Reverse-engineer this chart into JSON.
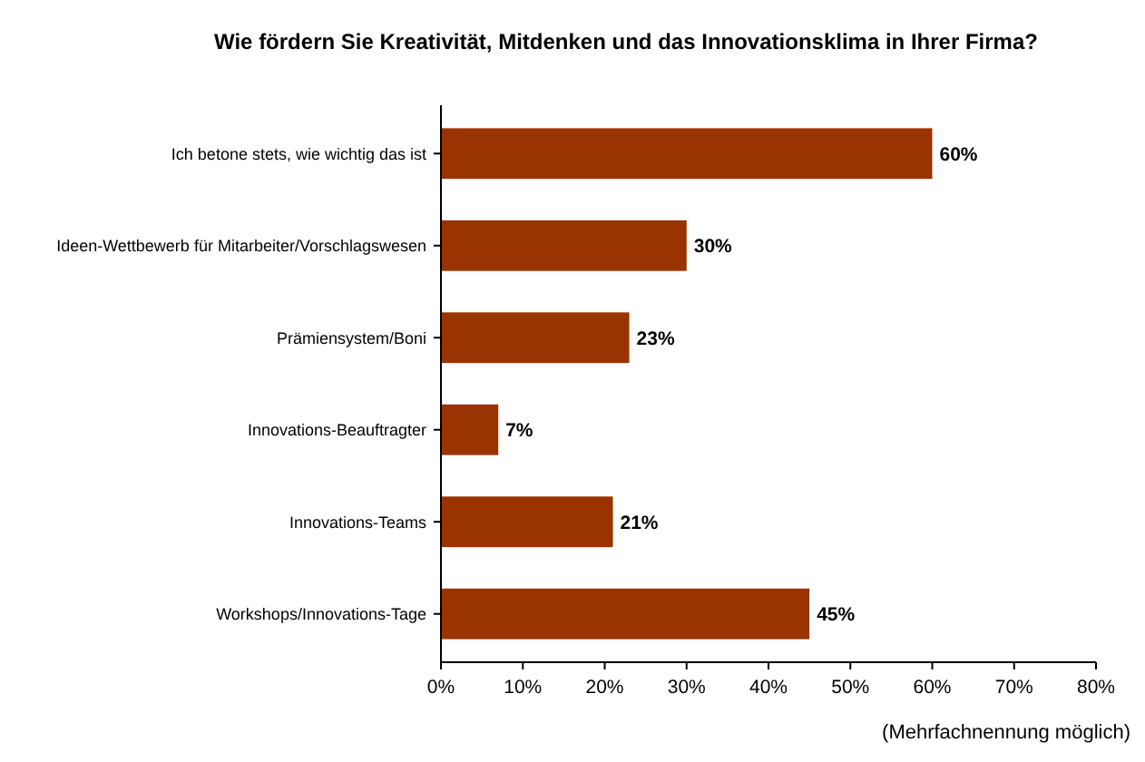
{
  "chart_data": {
    "type": "bar",
    "orientation": "horizontal",
    "title": "Wie fördern Sie Kreativität, Mitdenken und das Innovationsklima in Ihrer Firma?",
    "categories": [
      "Ich betone stets, wie wichtig das ist",
      "Ideen-Wettbewerb für Mitarbeiter/Vorschlagswesen",
      "Prämiensystem/Boni",
      "Innovations-Beauftragter",
      "Innovations-Teams",
      "Workshops/Innovations-Tage"
    ],
    "values": [
      60,
      30,
      23,
      7,
      21,
      45
    ],
    "value_labels": [
      "60%",
      "30%",
      "23%",
      "7%",
      "21%",
      "45%"
    ],
    "color": "#993300",
    "xlim": [
      0,
      80
    ],
    "xticks": [
      {
        "value": 0,
        "label": "0%"
      },
      {
        "value": 10,
        "label": "10%"
      },
      {
        "value": 20,
        "label": "20%"
      },
      {
        "value": 30,
        "label": "30%"
      },
      {
        "value": 40,
        "label": "40%"
      },
      {
        "value": 50,
        "label": "50%"
      },
      {
        "value": 60,
        "label": "60%"
      },
      {
        "value": 70,
        "label": "70%"
      },
      {
        "value": 80,
        "label": "80%"
      }
    ],
    "annotations": [
      "(Mehrfachnennung möglich)"
    ],
    "grid": false
  }
}
